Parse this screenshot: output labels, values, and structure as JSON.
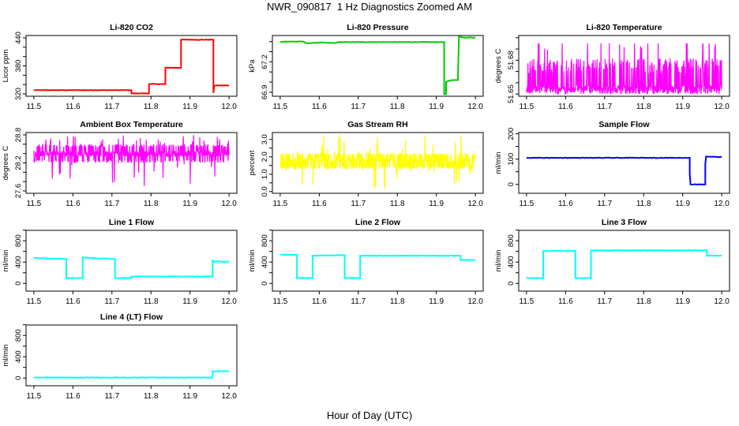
{
  "title": "NWR_090817  1 Hz Diagnostics Zoomed AM",
  "xlabel": "Hour of Day (UTC)",
  "chart_data": [
    {
      "type": "line",
      "title": "Li-820 CO2",
      "ylabel": "Licor ppm",
      "color": "#ff0000",
      "xlim": [
        11.5,
        12.0
      ],
      "ylim": [
        315,
        445
      ],
      "xticks": [
        11.5,
        11.6,
        11.7,
        11.8,
        11.9,
        12.0
      ],
      "xtick_labels": [
        "11.5",
        "11.6",
        "11.7",
        "11.8",
        "11.9",
        "12.0"
      ],
      "yticks": [
        320,
        340,
        360,
        380,
        400,
        420,
        440
      ],
      "ytick_labels": [
        "320",
        "",
        "",
        "380",
        "",
        "",
        "440"
      ],
      "series": {
        "kind": "step",
        "points": [
          [
            11.5,
            328
          ],
          [
            11.75,
            328
          ],
          [
            11.75,
            321
          ],
          [
            11.795,
            321
          ],
          [
            11.795,
            341
          ],
          [
            11.837,
            341
          ],
          [
            11.837,
            376
          ],
          [
            11.877,
            376
          ],
          [
            11.877,
            436
          ],
          [
            11.96,
            436
          ],
          [
            11.96,
            322
          ],
          [
            11.962,
            338
          ],
          [
            12.0,
            338
          ]
        ]
      }
    },
    {
      "type": "line",
      "title": "Li-820 Pressure",
      "ylabel": "kPa",
      "color": "#00cc00",
      "xlim": [
        11.5,
        12.0
      ],
      "ylim": [
        66.86,
        67.46
      ],
      "xticks": [
        11.5,
        11.6,
        11.7,
        11.8,
        11.9,
        12.0
      ],
      "xtick_labels": [
        "11.5",
        "11.6",
        "11.7",
        "11.8",
        "11.9",
        "12.0"
      ],
      "yticks": [
        66.9,
        67.0,
        67.1,
        67.2,
        67.3,
        67.4
      ],
      "ytick_labels": [
        "66.9",
        "",
        "",
        "67.2",
        "",
        ""
      ],
      "series": {
        "kind": "step",
        "points": [
          [
            11.5,
            67.395
          ],
          [
            11.51,
            67.4
          ],
          [
            11.56,
            67.4
          ],
          [
            11.565,
            67.385
          ],
          [
            11.58,
            67.385
          ],
          [
            11.6,
            67.39
          ],
          [
            11.64,
            67.385
          ],
          [
            11.65,
            67.395
          ],
          [
            11.92,
            67.395
          ],
          [
            11.92,
            66.88
          ],
          [
            11.925,
            66.88
          ],
          [
            11.925,
            67.0
          ],
          [
            11.93,
            67.01
          ],
          [
            11.945,
            67.02
          ],
          [
            11.955,
            67.02
          ],
          [
            11.958,
            67.45
          ],
          [
            11.97,
            67.44
          ],
          [
            12.0,
            67.44
          ]
        ]
      }
    },
    {
      "type": "line",
      "title": "Li-820 Temperature",
      "ylabel": "degrees C",
      "color": "#ff00ff",
      "xlim": [
        11.5,
        12.0
      ],
      "ylim": [
        51.648,
        51.702
      ],
      "xticks": [
        11.5,
        11.6,
        11.7,
        11.8,
        11.9,
        12.0
      ],
      "xtick_labels": [
        "11.5",
        "11.6",
        "11.7",
        "11.8",
        "11.9",
        "12.0"
      ],
      "yticks": [
        51.65,
        51.66,
        51.67,
        51.68,
        51.69,
        51.7
      ],
      "ytick_labels": [
        "51.65",
        "",
        "",
        "51.68",
        "",
        ""
      ],
      "series": {
        "kind": "noise",
        "base": 51.675,
        "low": 51.65,
        "high": 51.695,
        "p_low": 0.7,
        "p_high": 0.02
      }
    },
    {
      "type": "line",
      "title": "Ambient Box Temperature",
      "ylabel": "degrees C",
      "color": "#ff00ff",
      "xlim": [
        11.5,
        12.0
      ],
      "ylim": [
        27.55,
        28.85
      ],
      "xticks": [
        11.5,
        11.6,
        11.7,
        11.8,
        11.9,
        12.0
      ],
      "xtick_labels": [
        "11.5",
        "11.6",
        "11.7",
        "11.8",
        "11.9",
        "12.0"
      ],
      "yticks": [
        27.6,
        27.8,
        28.0,
        28.2,
        28.4,
        28.6,
        28.8
      ],
      "ytick_labels": [
        "27.6",
        "",
        "",
        "28.2",
        "",
        "",
        "28.8"
      ],
      "series": {
        "kind": "noise",
        "base": 28.4,
        "low": 28.2,
        "high": 28.6,
        "p_low": 0.2,
        "p_high": 0.2,
        "spike_low": 27.6,
        "spike_high": 28.8
      }
    },
    {
      "type": "line",
      "title": "Gas Stream RH",
      "ylabel": "percent",
      "color": "#ffff00",
      "xlim": [
        11.5,
        12.0
      ],
      "ylim": [
        -0.1,
        3.4
      ],
      "xticks": [
        11.5,
        11.6,
        11.7,
        11.8,
        11.9,
        12.0
      ],
      "xtick_labels": [
        "11.5",
        "11.6",
        "11.7",
        "11.8",
        "11.9",
        "12.0"
      ],
      "yticks": [
        0,
        0.5,
        1.0,
        1.5,
        2.0,
        2.5,
        3.0
      ],
      "ytick_labels": [
        "0.0",
        "",
        "1.0",
        "",
        "2.0",
        "",
        "3.0"
      ],
      "series": {
        "kind": "noise",
        "base": 1.8,
        "low": 1.3,
        "high": 2.2,
        "p_low": 0.35,
        "p_high": 0.35,
        "spike_low": 0.1,
        "spike_high": 3.3
      }
    },
    {
      "type": "line",
      "title": "Sample Flow",
      "ylabel": "ml/min",
      "color": "#0000ff",
      "xlim": [
        11.5,
        12.0
      ],
      "ylim": [
        -35,
        205
      ],
      "xticks": [
        11.5,
        11.6,
        11.7,
        11.8,
        11.9,
        12.0
      ],
      "xtick_labels": [
        "11.5",
        "11.6",
        "11.7",
        "11.8",
        "11.9",
        "12.0"
      ],
      "yticks": [
        0,
        50,
        100,
        150,
        200
      ],
      "ytick_labels": [
        "0",
        "",
        "100",
        "",
        "200"
      ],
      "series": {
        "kind": "step",
        "points": [
          [
            11.5,
            105
          ],
          [
            11.918,
            105
          ],
          [
            11.918,
            40
          ],
          [
            11.92,
            0
          ],
          [
            11.958,
            0
          ],
          [
            11.958,
            80
          ],
          [
            11.96,
            110
          ],
          [
            12.0,
            108
          ]
        ]
      }
    },
    {
      "type": "line",
      "title": "Line 1 Flow",
      "ylabel": "ml/min",
      "color": "#00ffff",
      "xlim": [
        11.5,
        12.0
      ],
      "ylim": [
        -144,
        995
      ],
      "xticks": [
        11.5,
        11.6,
        11.7,
        11.8,
        11.9,
        12.0
      ],
      "xtick_labels": [
        "11.5",
        "11.6",
        "11.7",
        "11.8",
        "11.9",
        "12.0"
      ],
      "yticks": [
        0,
        200,
        400,
        600,
        800,
        1000
      ],
      "ytick_labels": [
        "0",
        "",
        "400",
        "",
        "800",
        ""
      ],
      "series": {
        "kind": "step",
        "points": [
          [
            11.5,
            480
          ],
          [
            11.54,
            465
          ],
          [
            11.583,
            460
          ],
          [
            11.583,
            100
          ],
          [
            11.625,
            100
          ],
          [
            11.625,
            490
          ],
          [
            11.66,
            470
          ],
          [
            11.708,
            460
          ],
          [
            11.708,
            100
          ],
          [
            11.75,
            100
          ],
          [
            11.75,
            130
          ],
          [
            11.958,
            130
          ],
          [
            11.958,
            440
          ],
          [
            11.96,
            410
          ],
          [
            12.0,
            410
          ]
        ]
      }
    },
    {
      "type": "line",
      "title": "Line 2 Flow",
      "ylabel": "ml/min",
      "color": "#00ffff",
      "xlim": [
        11.5,
        12.0
      ],
      "ylim": [
        -144,
        995
      ],
      "xticks": [
        11.5,
        11.6,
        11.7,
        11.8,
        11.9,
        12.0
      ],
      "xtick_labels": [
        "11.5",
        "11.6",
        "11.7",
        "11.8",
        "11.9",
        "12.0"
      ],
      "yticks": [
        0,
        200,
        400,
        600,
        800,
        1000
      ],
      "ytick_labels": [
        "0",
        "",
        "400",
        "",
        "800",
        ""
      ],
      "series": {
        "kind": "step",
        "points": [
          [
            11.5,
            540
          ],
          [
            11.543,
            540
          ],
          [
            11.543,
            100
          ],
          [
            11.583,
            100
          ],
          [
            11.583,
            520
          ],
          [
            11.665,
            530
          ],
          [
            11.665,
            100
          ],
          [
            11.705,
            100
          ],
          [
            11.705,
            520
          ],
          [
            11.962,
            520
          ],
          [
            11.962,
            440
          ],
          [
            12.0,
            440
          ]
        ]
      }
    },
    {
      "type": "line",
      "title": "Line 3 Flow",
      "ylabel": "ml/min",
      "color": "#00ffff",
      "xlim": [
        11.5,
        12.0
      ],
      "ylim": [
        -144,
        995
      ],
      "xticks": [
        11.5,
        11.6,
        11.7,
        11.8,
        11.9,
        12.0
      ],
      "xtick_labels": [
        "11.5",
        "11.6",
        "11.7",
        "11.8",
        "11.9",
        "12.0"
      ],
      "yticks": [
        0,
        200,
        400,
        600,
        800,
        1000
      ],
      "ytick_labels": [
        "0",
        "",
        "400",
        "",
        "800",
        ""
      ],
      "series": {
        "kind": "step",
        "points": [
          [
            11.5,
            100
          ],
          [
            11.543,
            100
          ],
          [
            11.543,
            610
          ],
          [
            11.625,
            610
          ],
          [
            11.625,
            100
          ],
          [
            11.665,
            100
          ],
          [
            11.665,
            620
          ],
          [
            11.962,
            620
          ],
          [
            11.962,
            520
          ],
          [
            12.0,
            520
          ]
        ]
      }
    },
    {
      "type": "line",
      "title": "Line 4 (LT) Flow",
      "ylabel": "ml/min",
      "color": "#00ffff",
      "xlim": [
        11.5,
        12.0
      ],
      "ylim": [
        -144,
        995
      ],
      "xticks": [
        11.5,
        11.6,
        11.7,
        11.8,
        11.9,
        12.0
      ],
      "xtick_labels": [
        "11.5",
        "11.6",
        "11.7",
        "11.8",
        "11.9",
        "12.0"
      ],
      "yticks": [
        0,
        200,
        400,
        600,
        800,
        1000
      ],
      "ytick_labels": [
        "0",
        "",
        "400",
        "",
        "800",
        ""
      ],
      "series": {
        "kind": "step",
        "points": [
          [
            11.5,
            10
          ],
          [
            11.958,
            10
          ],
          [
            11.958,
            130
          ],
          [
            12.0,
            130
          ]
        ]
      }
    }
  ]
}
